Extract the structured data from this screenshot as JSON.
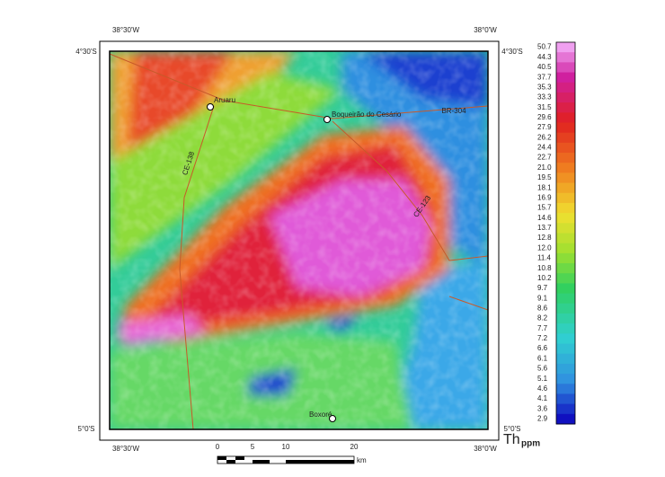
{
  "frame_labels": [
    "38°30'W",
    "38°0'W",
    "4°30'S",
    "4°30'S",
    "5°0'S",
    "5°0'S",
    "38°30'W",
    "38°0'W"
  ],
  "places": [
    "Aruaru",
    "Boqueirão do Cesário",
    "Boxoré"
  ],
  "roads": [
    "BR-304",
    "CE-138",
    "CE-123"
  ],
  "legend": {
    "labels": [
      "50.7",
      "44.3",
      "40.5",
      "37.7",
      "35.3",
      "33.3",
      "31.5",
      "29.6",
      "27.9",
      "26.2",
      "24.4",
      "22.7",
      "21.0",
      "19.5",
      "18.1",
      "16.9",
      "15.7",
      "14.6",
      "13.7",
      "12.8",
      "12.0",
      "11.4",
      "10.8",
      "10.2",
      "9.7",
      "9.1",
      "8.6",
      "8.2",
      "7.7",
      "7.2",
      "6.6",
      "6.1",
      "5.6",
      "5.1",
      "4.6",
      "4.1",
      "3.6",
      "2.9"
    ],
    "title": "Th",
    "unit": "ppm"
  },
  "scale": {
    "ticks": [
      "0",
      "5",
      "10",
      "20"
    ],
    "unit": "km"
  }
}
